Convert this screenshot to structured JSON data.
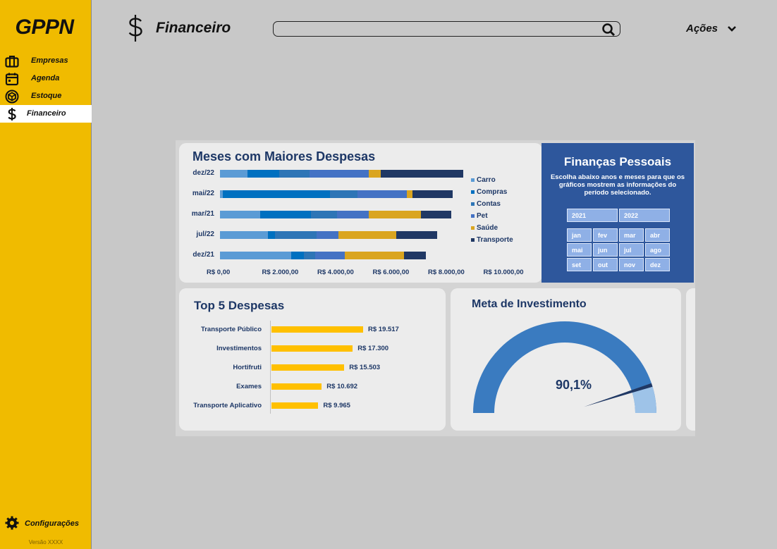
{
  "app": {
    "logo": "GPPN",
    "version": "Versão XXXX"
  },
  "sidebar": {
    "items": [
      {
        "label": "Empresas",
        "icon": "briefcase-icon",
        "active": false
      },
      {
        "label": "Agenda",
        "icon": "calendar-icon",
        "active": false
      },
      {
        "label": "Estoque",
        "icon": "box-icon",
        "active": false
      },
      {
        "label": "Financeiro",
        "icon": "dollar-icon",
        "active": true
      }
    ],
    "settings_label": "Configurações",
    "settings_icon": "gear-icon"
  },
  "header": {
    "title": "Financeiro",
    "icon": "dollar-icon",
    "search_placeholder": "",
    "actions_label": "Ações"
  },
  "colors": {
    "sidebar": "#f0bb00",
    "background": "#c8c8c8",
    "active_item": "#ffffff",
    "accent_blue": "#2e579c",
    "gold": "#ffc000"
  },
  "dashboard": {
    "despesas": {
      "title": "Meses com Maiores Despesas",
      "legend": [
        "Carro",
        "Compras",
        "Contas",
        "Pet",
        "Saúde",
        "Transporte"
      ],
      "legend_colors": [
        "#5b9bd5",
        "#0070c0",
        "#2e75b6",
        "#4472c4",
        "#daa520",
        "#203864"
      ],
      "months": [
        "dez/22",
        "mai/22",
        "mar/21",
        "jul/22",
        "dez/21"
      ],
      "x_ticks": [
        "R$ 0,00",
        "R$ 2.000,00",
        "R$ 4.000,00",
        "R$ 6.000,00",
        "R$ 8.000,00",
        "R$ 10.000,00"
      ]
    },
    "financas": {
      "title": "Finanças Pessoais",
      "subtitle": "Escolha abaixo anos e meses para que os gráficos mostrem as informações do período selecionado.",
      "years": [
        "2021",
        "2022"
      ],
      "months": [
        "jan",
        "fev",
        "mar",
        "abr",
        "mai",
        "jun",
        "jul",
        "ago",
        "set",
        "out",
        "nov",
        "dez"
      ]
    },
    "top5": {
      "title": "Top 5 Despesas",
      "labels": [
        "Transporte Público",
        "Investimentos",
        "Hortifruti",
        "Exames",
        "Transporte Aplicativo"
      ],
      "value_labels": [
        "R$ 19.517",
        "R$ 17.300",
        "R$ 15.503",
        "R$ 10.692",
        "R$ 9.965"
      ]
    },
    "meta": {
      "title": "Meta de Investimento",
      "value_label": "90,1%"
    }
  },
  "chart_data": [
    {
      "type": "bar",
      "orientation": "horizontal",
      "stacked": true,
      "title": "Meses com Maiores Despesas",
      "categories": [
        "dez/22",
        "mai/22",
        "mar/21",
        "jul/22",
        "dez/21"
      ],
      "xlim": [
        0,
        10000
      ],
      "series": [
        {
          "name": "Carro",
          "values": [
            1000,
            100,
            1450,
            1750,
            2600
          ]
        },
        {
          "name": "Compras",
          "values": [
            1150,
            3900,
            1850,
            250,
            450
          ]
        },
        {
          "name": "Contas",
          "values": [
            1100,
            1000,
            950,
            1500,
            400
          ]
        },
        {
          "name": "Pet",
          "values": [
            2150,
            1800,
            1150,
            800,
            1100
          ]
        },
        {
          "name": "Saúde",
          "values": [
            450,
            200,
            1900,
            2100,
            2150
          ]
        },
        {
          "name": "Transporte",
          "values": [
            3000,
            1450,
            1100,
            1500,
            800
          ]
        }
      ],
      "legend_position": "right"
    },
    {
      "type": "bar",
      "orientation": "horizontal",
      "title": "Top 5 Despesas",
      "categories": [
        "Transporte Público",
        "Investimentos",
        "Hortifruti",
        "Exames",
        "Transporte Aplicativo"
      ],
      "values": [
        19517,
        17300,
        15503,
        10692,
        9965
      ]
    },
    {
      "type": "gauge",
      "title": "Meta de Investimento",
      "value": 0.901
    }
  ]
}
